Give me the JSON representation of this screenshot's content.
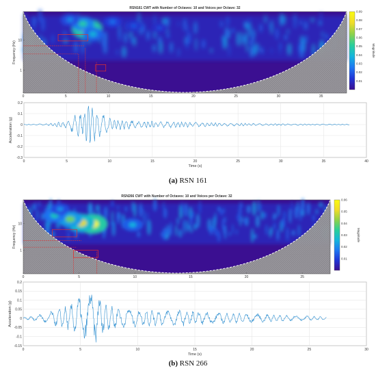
{
  "chart_data": [
    {
      "type": "heatmap",
      "panel": "a",
      "title": "RSN161 CWT with Number of Octaves: 10 and Voices per Octave: 32",
      "ylabel": "Frequency (Hz)",
      "xlim": [
        0,
        38
      ],
      "x_ticks": [
        "0",
        "5",
        "10",
        "15",
        "20",
        "25",
        "30",
        "35"
      ],
      "y_ticks": [
        "10",
        "1"
      ],
      "colorbar": {
        "label": "Magnitude",
        "range": [
          0,
          0.09
        ],
        "ticks": [
          "0.09",
          "0.08",
          "0.07",
          "0.06",
          "0.05",
          "0.04",
          "0.03",
          "0.02",
          "0.01"
        ]
      },
      "hotspots": [
        {
          "t": 7.5,
          "f_log": 0.55,
          "mag": 0.09
        },
        {
          "t": 7.0,
          "f_log": 0.8,
          "mag": 0.05
        },
        {
          "t": 8.2,
          "f_log": 0.3,
          "mag": 0.04
        },
        {
          "t": 5.5,
          "f_log": 1.0,
          "mag": 0.03
        },
        {
          "t": 10.5,
          "f_log": 0.9,
          "mag": 0.025
        },
        {
          "t": 13.0,
          "f_log": 0.7,
          "mag": 0.02
        },
        {
          "t": 16.0,
          "f_log": 0.6,
          "mag": 0.018
        }
      ]
    },
    {
      "type": "line",
      "panel": "a",
      "xlabel": "Time (s)",
      "ylabel": "Acceleration (g)",
      "xlim": [
        0,
        40
      ],
      "ylim": [
        -0.3,
        0.2
      ],
      "x_ticks": [
        "0",
        "5",
        "10",
        "15",
        "20",
        "25",
        "30",
        "35",
        "40"
      ],
      "y_ticks": [
        "0.2",
        "0.1",
        "0",
        "-0.1",
        "-0.2",
        "-0.3"
      ],
      "signal": {
        "duration": 38,
        "envelope": [
          {
            "t": 0,
            "a": 0.003
          },
          {
            "t": 3,
            "a": 0.01
          },
          {
            "t": 5,
            "a": 0.04
          },
          {
            "t": 6.5,
            "a": 0.12
          },
          {
            "t": 7.5,
            "a": 0.2
          },
          {
            "t": 8.5,
            "a": 0.14
          },
          {
            "t": 10,
            "a": 0.06
          },
          {
            "t": 13,
            "a": 0.04
          },
          {
            "t": 17,
            "a": 0.03
          },
          {
            "t": 22,
            "a": 0.018
          },
          {
            "t": 28,
            "a": 0.01
          },
          {
            "t": 38,
            "a": 0.004
          }
        ]
      }
    },
    {
      "type": "heatmap",
      "panel": "b",
      "title": "RSN266 CWT with Number of Octaves: 10 and Voices per Octave: 32",
      "ylabel": "Frequency (Hz)",
      "xlim": [
        0,
        27.5
      ],
      "x_ticks": [
        "0",
        "5",
        "10",
        "15",
        "20",
        "25"
      ],
      "y_ticks": [
        "10",
        "1"
      ],
      "colorbar": {
        "label": "Magnitude",
        "range": [
          0,
          0.06
        ],
        "ticks": [
          "0.06",
          "0.05",
          "0.04",
          "0.03",
          "0.02",
          "0.01"
        ]
      },
      "hotspots": [
        {
          "t": 6.2,
          "f_log": 0.1,
          "mag": 0.06
        },
        {
          "t": 5.2,
          "f_log": 0.15,
          "mag": 0.05
        },
        {
          "t": 4.2,
          "f_log": 0.35,
          "mag": 0.04
        },
        {
          "t": 2.8,
          "f_log": 0.55,
          "mag": 0.03
        },
        {
          "t": 9.8,
          "f_log": 0.05,
          "mag": 0.025
        },
        {
          "t": 3.3,
          "f_log": 0.9,
          "mag": 0.02
        }
      ]
    },
    {
      "type": "line",
      "panel": "b",
      "xlabel": "Time (s)",
      "ylabel": "Acceleration (g)",
      "xlim": [
        0,
        30
      ],
      "ylim": [
        -0.15,
        0.2
      ],
      "x_ticks": [
        "0",
        "5",
        "10",
        "15",
        "20",
        "25",
        "30"
      ],
      "y_ticks": [
        "0.2",
        "0.15",
        "0.1",
        "0.05",
        "0",
        "-0.05",
        "-0.1",
        "-0.15"
      ],
      "signal": {
        "duration": 26.5,
        "envelope": [
          {
            "t": 0,
            "a": 0.005
          },
          {
            "t": 2,
            "a": 0.03
          },
          {
            "t": 3.5,
            "a": 0.06
          },
          {
            "t": 4.5,
            "a": 0.09
          },
          {
            "t": 5.2,
            "a": 0.14
          },
          {
            "t": 6.3,
            "a": 0.15
          },
          {
            "t": 7.5,
            "a": 0.07
          },
          {
            "t": 10,
            "a": 0.05
          },
          {
            "t": 14,
            "a": 0.045
          },
          {
            "t": 18,
            "a": 0.03
          },
          {
            "t": 22,
            "a": 0.022
          },
          {
            "t": 26.5,
            "a": 0.008
          }
        ]
      }
    }
  ],
  "captions": {
    "a": {
      "label": "(a)",
      "text": " RSN 161"
    },
    "b": {
      "label": "(b)",
      "text": " RSN 266"
    }
  },
  "colors": {
    "cmap": [
      "#3b0f91",
      "#2035d6",
      "#1f78f2",
      "#14b5dc",
      "#29cf9a",
      "#8ed24a",
      "#f0dc2a",
      "#fafa10"
    ],
    "signal": "#2f8fd0",
    "coi_shade": "#8f8f8f",
    "annotation": "#e03030"
  }
}
